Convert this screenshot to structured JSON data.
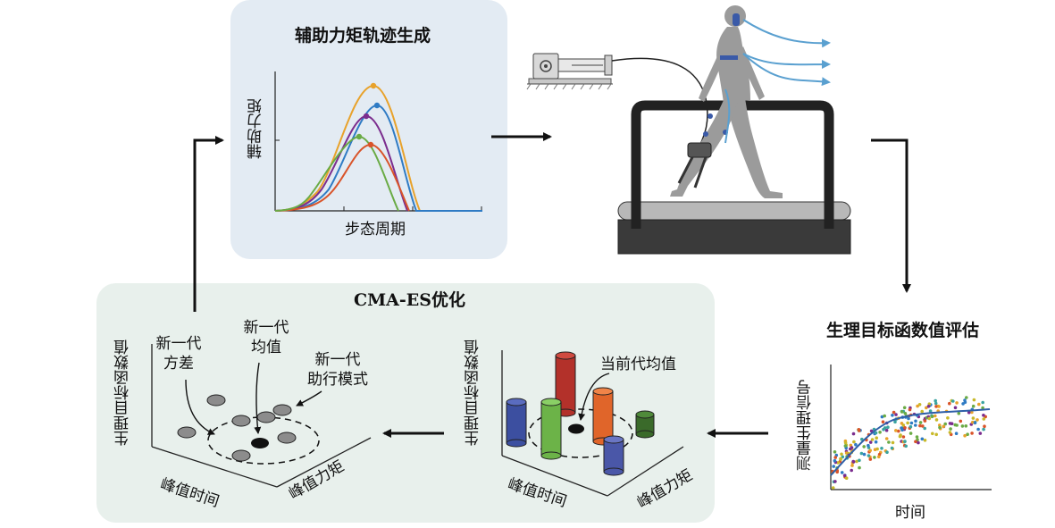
{
  "top_panel": {
    "title": "辅助力矩轨迹生成",
    "ylabel": "辅助力矩",
    "xlabel": "步态周期"
  },
  "bottom_panel": {
    "title": "CMA-ES优化",
    "left_plot": {
      "ylabel": "生理目标函数值",
      "xlabel": "峰值时间",
      "zlabel": "峰值力矩",
      "ann_variance_line1": "新一代",
      "ann_variance_line2": "方差",
      "ann_mean_line1": "新一代",
      "ann_mean_line2": "均值",
      "ann_mode_line1": "新一代",
      "ann_mode_line2": "助行模式"
    },
    "right_plot": {
      "ylabel": "生理目标函数值",
      "xlabel": "峰值时间",
      "zlabel": "峰值力矩",
      "ann_current_mean": "当前代均值"
    }
  },
  "evaluation": {
    "title": "生理目标函数值评估",
    "ylabel": "测量生理信号",
    "xlabel": "时间"
  },
  "colors": {
    "top_panel_bg": "#e3ebf3",
    "bottom_panel_bg": "#e8f0ec",
    "curve_orange": "#e8a22b",
    "curve_blue": "#2f7bc4",
    "curve_purple": "#7b2d8e",
    "curve_green": "#6aab45",
    "curve_red": "#d9542a",
    "flow_arrow": "#5aa0d0"
  }
}
